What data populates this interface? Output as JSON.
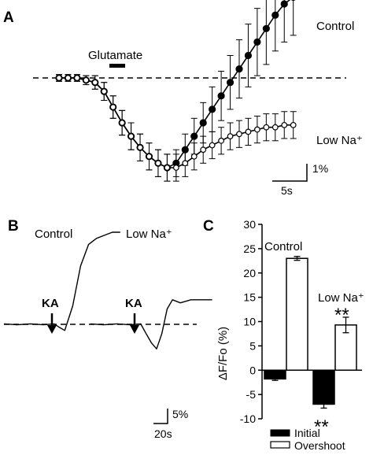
{
  "panels": {
    "a": "A",
    "b": "B",
    "c": "C"
  },
  "panel_a": {
    "stimulus_label": "Glutamate",
    "series_labels": [
      "Control",
      "Low Na⁺"
    ],
    "scalebar": {
      "y": "1%",
      "x": "5s"
    }
  },
  "panel_b": {
    "trace_labels": [
      "Control",
      "Low Na⁺"
    ],
    "stimulus_labels": [
      "KA",
      "KA"
    ],
    "scalebar": {
      "y": "5%",
      "x": "20s"
    }
  },
  "panel_c": {
    "significance": [
      "**",
      "**"
    ],
    "group_labels": [
      "Control",
      "Low Na⁺"
    ]
  },
  "chart_data": [
    {
      "type": "line",
      "panel": "A",
      "xlabel": "",
      "ylabel": "",
      "scalebar": {
        "x": "5s",
        "y": "1%"
      },
      "stimulus": "Glutamate",
      "baseline": "dashed",
      "x": [
        0,
        1,
        2,
        3,
        4,
        5,
        6,
        7,
        8,
        9,
        10,
        11,
        12,
        13,
        14,
        15,
        16,
        17,
        18,
        19,
        20,
        21,
        22,
        23,
        24,
        25,
        26
      ],
      "series": [
        {
          "name": "Control",
          "marker": "filled-circle",
          "values": [
            0,
            0,
            0,
            -0.1,
            -0.2,
            -0.6,
            -1.3,
            -2.0,
            -2.6,
            -3.1,
            -3.5,
            -3.8,
            -4.0,
            -3.8,
            -3.2,
            -2.6,
            -2.0,
            -1.4,
            -0.8,
            -0.2,
            0.4,
            1.0,
            1.6,
            2.2,
            2.8,
            3.3,
            3.6
          ],
          "error": [
            0.15,
            0.15,
            0.15,
            0.2,
            0.3,
            0.4,
            0.5,
            0.55,
            0.6,
            0.6,
            0.6,
            0.6,
            0.6,
            0.6,
            0.7,
            0.8,
            0.9,
            1.0,
            1.1,
            1.2,
            1.3,
            1.4,
            1.5,
            1.6,
            1.6,
            1.7,
            1.7
          ]
        },
        {
          "name": "Low Na⁺",
          "marker": "open-circle",
          "values": [
            0,
            0,
            0,
            -0.1,
            -0.2,
            -0.6,
            -1.3,
            -2.0,
            -2.6,
            -3.1,
            -3.5,
            -3.8,
            -4.0,
            -4.0,
            -3.8,
            -3.5,
            -3.2,
            -3.0,
            -2.8,
            -2.6,
            -2.5,
            -2.4,
            -2.3,
            -2.2,
            -2.2,
            -2.1,
            -2.1
          ],
          "error": [
            0.15,
            0.15,
            0.15,
            0.2,
            0.3,
            0.4,
            0.5,
            0.55,
            0.6,
            0.6,
            0.6,
            0.6,
            0.6,
            0.6,
            0.6,
            0.6,
            0.6,
            0.6,
            0.6,
            0.6,
            0.6,
            0.6,
            0.6,
            0.6,
            0.6,
            0.6,
            0.6
          ]
        }
      ]
    },
    {
      "type": "line",
      "panel": "B",
      "xlabel": "",
      "ylabel": "",
      "scalebar": {
        "x": "20s",
        "y": "5%"
      },
      "stimulus": "KA",
      "baseline": "dashed",
      "series": [
        {
          "name": "Control",
          "x": [
            0,
            10,
            20,
            30,
            38,
            42,
            46,
            52,
            58,
            64,
            70,
            76,
            82,
            88
          ],
          "values": [
            0,
            0,
            0,
            0,
            0,
            -1,
            -2,
            6,
            19,
            26,
            28,
            29,
            30,
            30
          ]
        },
        {
          "name": "Low Na⁺",
          "x": [
            0,
            10,
            20,
            30,
            38,
            42,
            46,
            50,
            54,
            58,
            62,
            68,
            76,
            84,
            92
          ],
          "values": [
            0,
            0,
            0,
            0,
            0,
            -3,
            -6,
            -8,
            -3,
            5,
            8,
            7,
            8,
            8,
            8
          ]
        }
      ]
    },
    {
      "type": "bar",
      "panel": "C",
      "categories": [
        "Control",
        "Low Na⁺"
      ],
      "ylabel": "ΔF/Fo  (%)",
      "ylim": [
        -10,
        30
      ],
      "yticks": [
        "-10",
        "-5",
        "0",
        "5",
        "10",
        "15",
        "20",
        "25",
        "30"
      ],
      "series": [
        {
          "name": "Initial",
          "color": "#000000",
          "values": [
            -1.8,
            -7.0
          ],
          "error": [
            0.3,
            0.8
          ]
        },
        {
          "name": "Overshoot",
          "color": "#ffffff",
          "values": [
            23.0,
            9.3
          ],
          "error": [
            0.4,
            1.6
          ]
        }
      ],
      "legend": "bottom"
    }
  ]
}
